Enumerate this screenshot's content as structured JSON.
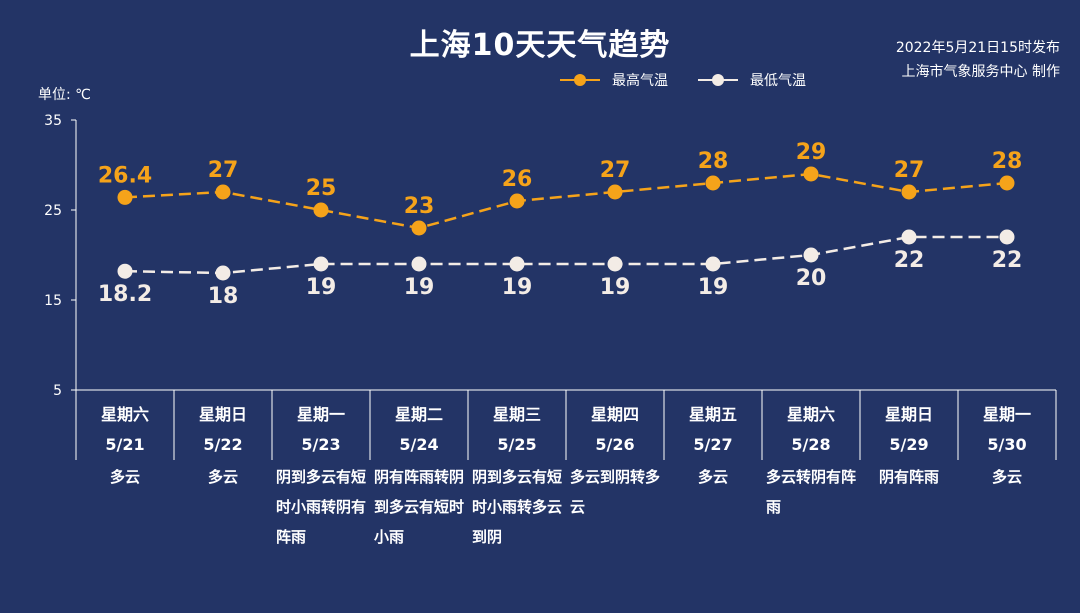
{
  "title": "上海10天天气趋势",
  "meta": {
    "published": "2022年5月21日15时发布",
    "producer": "上海市气象服务中心 制作"
  },
  "unit_label": "单位: ℃",
  "colors": {
    "high": "#f5a31a",
    "low": "#f3ece6",
    "background": "#233466"
  },
  "days": [
    {
      "weekday": "星期六",
      "date": "5/21",
      "weather": "多云"
    },
    {
      "weekday": "星期日",
      "date": "5/22",
      "weather": "多云"
    },
    {
      "weekday": "星期一",
      "date": "5/23",
      "weather": "阴到多云有短时小雨转阴有阵雨"
    },
    {
      "weekday": "星期二",
      "date": "5/24",
      "weather": "阴有阵雨转阴到多云有短时小雨"
    },
    {
      "weekday": "星期三",
      "date": "5/25",
      "weather": "阴到多云有短时小雨转多云到阴"
    },
    {
      "weekday": "星期四",
      "date": "5/26",
      "weather": "多云到阴转多云"
    },
    {
      "weekday": "星期五",
      "date": "5/27",
      "weather": "多云"
    },
    {
      "weekday": "星期六",
      "date": "5/28",
      "weather": "多云转阴有阵雨"
    },
    {
      "weekday": "星期日",
      "date": "5/29",
      "weather": "阴有阵雨"
    },
    {
      "weekday": "星期一",
      "date": "5/30",
      "weather": "多云"
    }
  ],
  "chart_data": {
    "type": "line",
    "title": "上海10天天气趋势",
    "ylabel": "单位: ℃",
    "ylim": [
      5,
      35
    ],
    "yticks": [
      5,
      15,
      25,
      35
    ],
    "categories": [
      "5/21",
      "5/22",
      "5/23",
      "5/24",
      "5/25",
      "5/26",
      "5/27",
      "5/28",
      "5/29",
      "5/30"
    ],
    "series": [
      {
        "name": "最高气温",
        "values": [
          26.4,
          27,
          25,
          23,
          26,
          27,
          28,
          29,
          27,
          28
        ],
        "labels": [
          "26.4",
          "27",
          "25",
          "23",
          "26",
          "27",
          "28",
          "29",
          "27",
          "28"
        ]
      },
      {
        "name": "最低气温",
        "values": [
          18.2,
          18,
          19,
          19,
          19,
          19,
          19,
          20,
          22,
          22
        ],
        "labels": [
          "18.2",
          "18",
          "19",
          "19",
          "19",
          "19",
          "19",
          "20",
          "22",
          "22"
        ]
      }
    ],
    "legend": "top",
    "grid": false
  }
}
